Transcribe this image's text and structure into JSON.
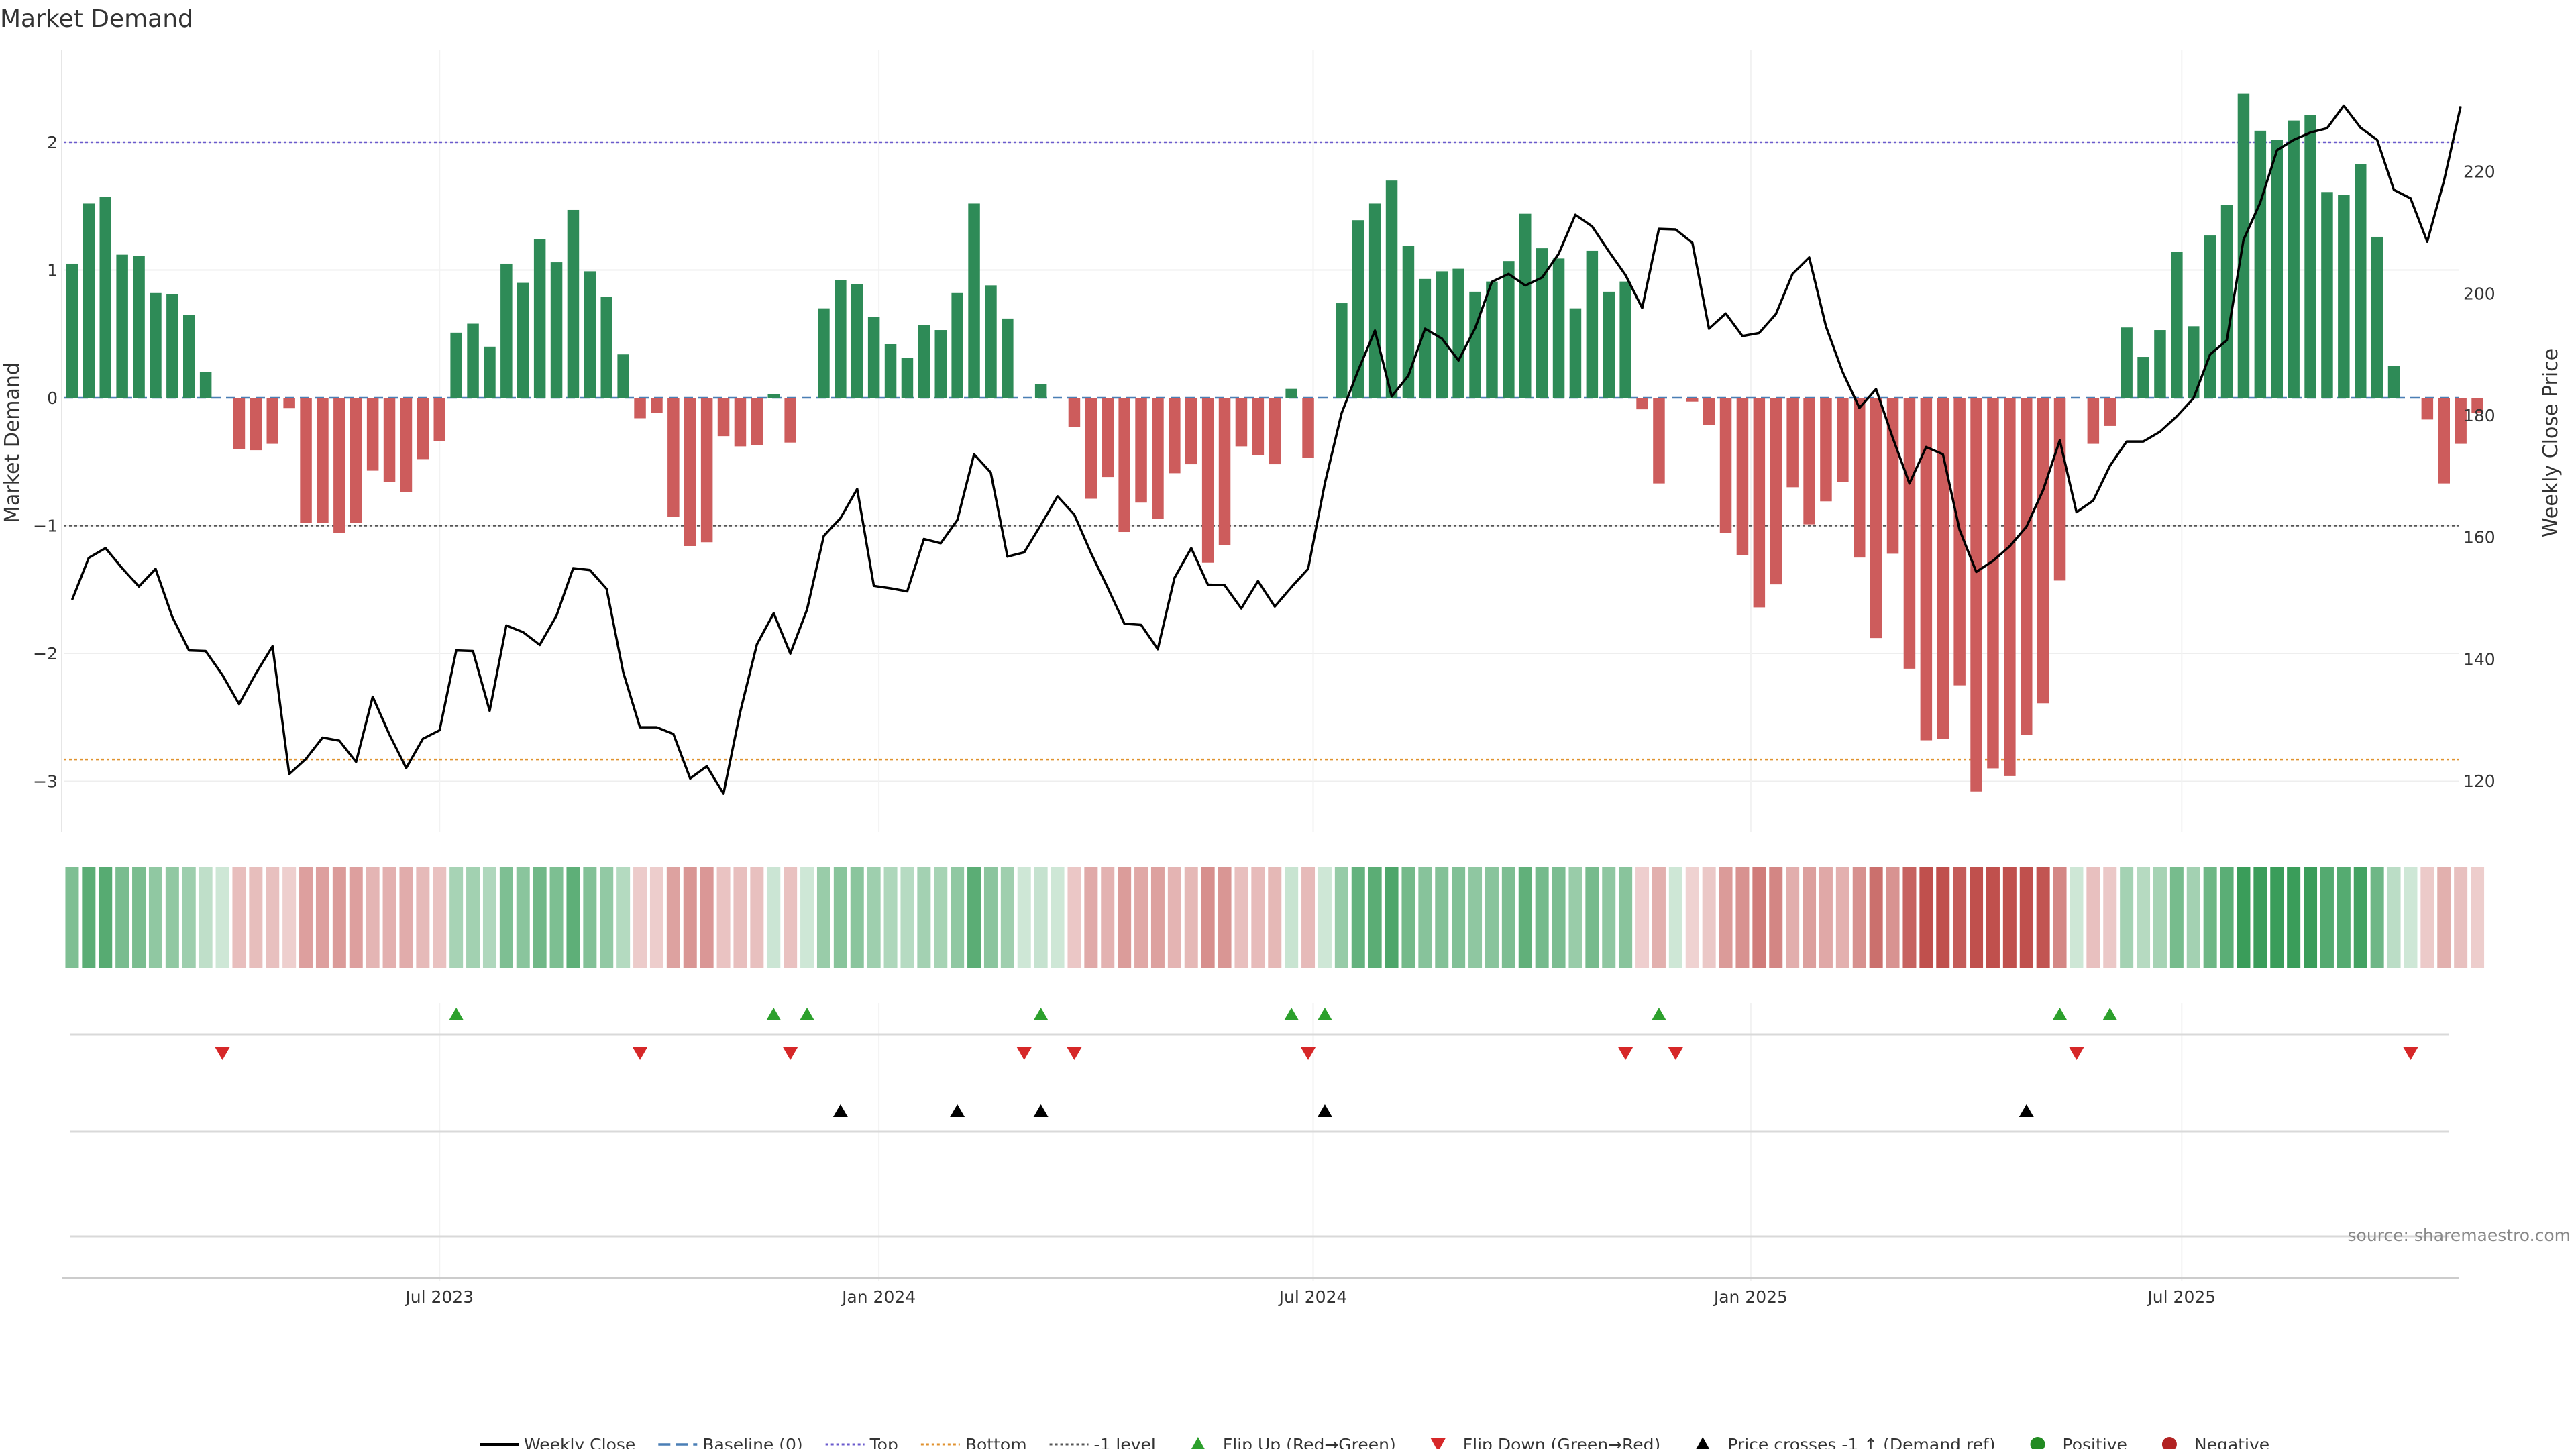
{
  "chart_data": {
    "type": "bar",
    "title": "Market Demand",
    "ylabel_left": "Market Demand",
    "ylabel_right": "Weekly Close Price",
    "ylim_left": [
      -3.4,
      2.7
    ],
    "ylim_right": [
      113,
      240
    ],
    "yticks_left": [
      -3,
      -2,
      -1,
      0,
      1,
      2
    ],
    "yticks_left_labels": [
      "−3",
      "−2",
      "−1",
      "0",
      "1",
      "2"
    ],
    "yticks_right": [
      120,
      140,
      160,
      180,
      200,
      220
    ],
    "yticks_right_labels": [
      "120",
      "140",
      "160",
      "180",
      "200",
      "220"
    ],
    "xtick_labels": [
      "Jul 2023",
      "Jan 2024",
      "Jul 2024",
      "Jan 2025",
      "Jul 2025"
    ],
    "xtick_week_index": [
      22.5,
      48.8,
      74.8,
      101,
      126.8
    ],
    "reference_lines": {
      "top": 2.0,
      "bottom": -2.83,
      "minus_one": -1.0,
      "baseline": 0
    },
    "demand": [
      1.05,
      1.52,
      1.57,
      1.12,
      1.11,
      0.82,
      0.81,
      0.65,
      0.2,
      0,
      -0.4,
      -0.41,
      -0.36,
      -0.08,
      -0.98,
      -0.98,
      -1.06,
      -0.98,
      -0.57,
      -0.66,
      -0.74,
      -0.48,
      -0.34,
      0.51,
      0.58,
      0.4,
      1.05,
      0.9,
      1.24,
      1.06,
      1.47,
      0.99,
      0.79,
      0.34,
      -0.16,
      -0.12,
      -0.93,
      -1.16,
      -1.13,
      -0.3,
      -0.38,
      -0.37,
      0.03,
      -0.35,
      0,
      0.7,
      0.92,
      0.89,
      0.63,
      0.42,
      0.31,
      0.57,
      0.53,
      0.82,
      1.52,
      0.88,
      0.62,
      0,
      0.11,
      0,
      -0.23,
      -0.79,
      -0.62,
      -1.05,
      -0.82,
      -0.95,
      -0.59,
      -0.52,
      -1.29,
      -1.15,
      -0.38,
      -0.45,
      -0.52,
      0.07,
      -0.47,
      0,
      0.74,
      1.39,
      1.52,
      1.7,
      1.19,
      0.93,
      0.99,
      1.01,
      0.83,
      0.91,
      1.07,
      1.44,
      1.17,
      1.09,
      0.7,
      1.15,
      0.83,
      0.91,
      -0.09,
      -0.67,
      0,
      -0.03,
      -0.21,
      -1.06,
      -1.23,
      -1.64,
      -1.46,
      -0.7,
      -0.99,
      -0.81,
      -0.66,
      -1.25,
      -1.88,
      -1.22,
      -2.12,
      -2.68,
      -2.67,
      -2.25,
      -3.08,
      -2.9,
      -2.96,
      -2.64,
      -2.39,
      -1.43,
      0,
      -0.36,
      -0.22,
      0.55,
      0.32,
      0.53,
      1.14,
      0.56,
      1.27,
      1.51,
      2.38,
      2.09,
      2.02,
      2.17,
      2.21,
      1.61,
      1.59,
      1.83,
      1.26,
      0.25,
      0,
      -0.17,
      -0.67,
      -0.36,
      -0.12
    ],
    "weekly_close": [
      149.7,
      156.6,
      158.2,
      154.9,
      151.9,
      154.8,
      146.9,
      141.4,
      141.3,
      137.4,
      132.6,
      137.6,
      142.1,
      121.1,
      123.6,
      127.1,
      126.6,
      123.1,
      133.8,
      127.6,
      122.1,
      126.9,
      128.3,
      141.4,
      141.3,
      131.5,
      145.5,
      144.4,
      142.3,
      147.1,
      154.9,
      154.6,
      151.5,
      137.8,
      128.8,
      128.8,
      127.7,
      120.4,
      122.4,
      117.9,
      131.3,
      142.4,
      147.5,
      140.9,
      148.1,
      160.2,
      163.1,
      167.9,
      152,
      151.6,
      151.1,
      159.7,
      159,
      162.8,
      173.6,
      170.6,
      156.8,
      157.5,
      162,
      166.7,
      163.7,
      157.4,
      151.7,
      145.8,
      145.6,
      141.6,
      153.3,
      158.2,
      152.2,
      152.1,
      148.3,
      152.8,
      148.6,
      151.8,
      154.8,
      168.8,
      180.3,
      187.4,
      193.9,
      183.1,
      186.5,
      194.2,
      192.6,
      189,
      194.3,
      201.9,
      203.2,
      201.3,
      202.6,
      206.5,
      212.9,
      211,
      206.9,
      203,
      197.6,
      210.6,
      210.5,
      208.3,
      194.2,
      196.7,
      193,
      193.5,
      196.6,
      203.2,
      205.9,
      194.6,
      187.1,
      181.2,
      184.3,
      176.3,
      168.8,
      174.8,
      173.6,
      161.2,
      154.3,
      156.1,
      158.5,
      161.7,
      167.7,
      175.9,
      164.1,
      166,
      171.7,
      175.7,
      175.7,
      177.3,
      179.8,
      182.8,
      190,
      192.3,
      208.8,
      214.9,
      223.5,
      225.2,
      226.4,
      227.1,
      230.8,
      227.2,
      225.2,
      217,
      215.6,
      208.5,
      218.5,
      230.7
    ],
    "flip_up_weeks": [
      23,
      42,
      44,
      58,
      73,
      75,
      95,
      119,
      122
    ],
    "flip_down_weeks": [
      9,
      34,
      43,
      57,
      60,
      74,
      93,
      96,
      120,
      140
    ],
    "price_cross_weeks": [
      46,
      53,
      58,
      75,
      117
    ],
    "source": "source: sharemaestro.com",
    "legend": [
      {
        "label": "Weekly Close",
        "kind": "line",
        "color": "#000000"
      },
      {
        "label": "Baseline (0)",
        "kind": "dash",
        "color": "#4a7fb5"
      },
      {
        "label": "Top",
        "kind": "dot",
        "color": "#6a5acd"
      },
      {
        "label": "Bottom",
        "kind": "dot",
        "color": "#e0922f"
      },
      {
        "label": "-1 level",
        "kind": "dot",
        "color": "#555555"
      },
      {
        "label": "Flip Up (Red→Green)",
        "kind": "tri-up",
        "color": "#2ca02c"
      },
      {
        "label": "Flip Down (Green→Red)",
        "kind": "tri-down",
        "color": "#d62728"
      },
      {
        "label": "Price crosses -1 ↑ (Demand ref)",
        "kind": "tri-up",
        "color": "#000000"
      },
      {
        "label": "Positive",
        "kind": "circle",
        "color": "#228b22"
      },
      {
        "label": "Negative",
        "kind": "circle",
        "color": "#b22222"
      }
    ],
    "colors": {
      "positive_bar": "#2e8b57",
      "negative_bar": "#cd5c5c",
      "flip_up": "#2ca02c",
      "flip_down": "#d62728",
      "cross": "#000000",
      "top_line": "#6a5acd",
      "bottom_line": "#e0922f",
      "minus_one_line": "#555555",
      "baseline": "#4a7fb5",
      "price_line": "#000000"
    }
  }
}
